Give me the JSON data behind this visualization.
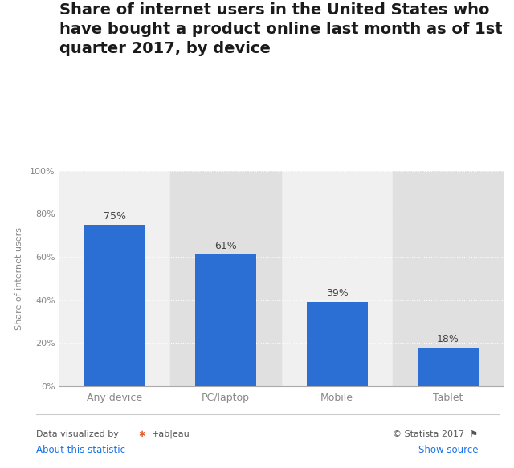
{
  "title_lines": [
    "Share of internet users in the United States who",
    "have bought a product online last month as of 1st",
    "quarter 2017, by device"
  ],
  "categories": [
    "Any device",
    "PC/laptop",
    "Mobile",
    "Tablet"
  ],
  "values": [
    75,
    61,
    39,
    18
  ],
  "bar_color": "#2b6fd4",
  "ylabel": "Share of internet users",
  "ylim": [
    0,
    100
  ],
  "yticks": [
    0,
    20,
    40,
    60,
    80,
    100
  ],
  "ytick_labels": [
    "0%",
    "20%",
    "40%",
    "60%",
    "80%",
    "100%"
  ],
  "bg_color": "#ffffff",
  "plot_bg_color": "#f0f0f0",
  "col_bg_color": "#e0e0e0",
  "grid_color": "#ffffff",
  "bar_label_color": "#444444",
  "bar_label_fontsize": 9,
  "title_fontsize": 14,
  "ylabel_fontsize": 8,
  "xtick_fontsize": 9,
  "ytick_fontsize": 8,
  "footer_right": "© Statista 2017",
  "link_left": "About this statistic",
  "link_right": "Show source",
  "link_color": "#1a73e8",
  "col_bg_indices": [
    1,
    3
  ],
  "divider_color": "#cccccc"
}
